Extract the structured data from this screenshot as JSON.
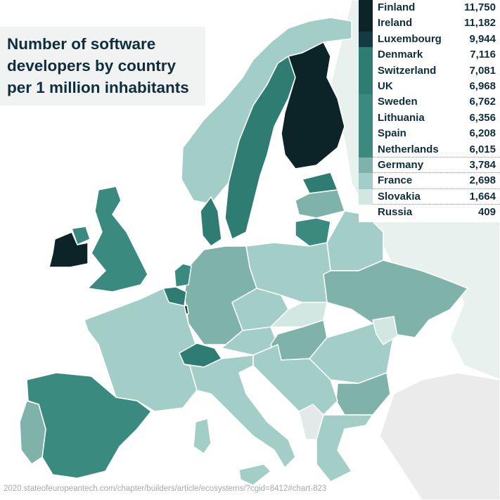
{
  "title_lines": [
    "Number of software",
    "developers by country",
    "per 1 million inhabitants"
  ],
  "source": "2020.stateofeuropeantech.com/chapter/builders/article/ecosystems/?cgid=8412#chart-823",
  "colors": {
    "tier1": "#0c2327",
    "tier1b": "#143b44",
    "tier2": "#2e7c72",
    "tier2b": "#3b8a80",
    "tier3": "#7fb3aa",
    "tier4": "#a2cec7",
    "tier5": "#d2e6e2",
    "nodata": "#ebebeb"
  },
  "legend": [
    {
      "country": "Finland",
      "value": "11,750",
      "color": "#0c2327",
      "dotted": false
    },
    {
      "country": "Ireland",
      "value": "11,182",
      "color": "#0c2327",
      "dotted": false
    },
    {
      "country": "Luxembourg",
      "value": "9,944",
      "color": "#143b44",
      "dotted": false
    },
    {
      "country": "Denmark",
      "value": "7,116",
      "color": "#2e7c72",
      "dotted": false
    },
    {
      "country": "Switzerland",
      "value": "7,081",
      "color": "#2e7c72",
      "dotted": false
    },
    {
      "country": "UK",
      "value": "6,968",
      "color": "#2e7c72",
      "dotted": false
    },
    {
      "country": "Sweden",
      "value": "6,762",
      "color": "#3b8a80",
      "dotted": false
    },
    {
      "country": "Lithuania",
      "value": "6,356",
      "color": "#3b8a80",
      "dotted": false
    },
    {
      "country": "Spain",
      "value": "6,208",
      "color": "#3b8a80",
      "dotted": false
    },
    {
      "country": "Netherlands",
      "value": "6,015",
      "color": "#3b8a80",
      "dotted": true
    },
    {
      "country": "Germany",
      "value": "3,784",
      "color": "#7fb3aa",
      "dotted": true
    },
    {
      "country": "France",
      "value": "2,698",
      "color": "#a2cec7",
      "dotted": true
    },
    {
      "country": "Slovakia",
      "value": "1,664",
      "color": "#d2e6e2",
      "dotted": true
    },
    {
      "country": "Russia",
      "value": "409",
      "color": "#ffffff",
      "dotted": false
    }
  ]
}
